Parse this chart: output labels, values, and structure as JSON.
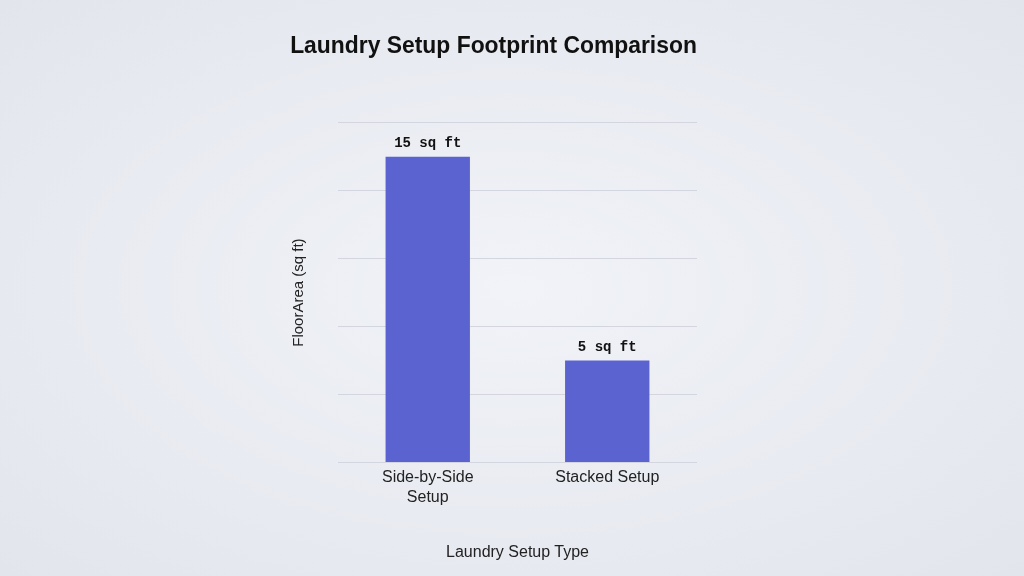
{
  "chart_data": {
    "type": "bar",
    "title": "Laundry Setup Footprint Comparison",
    "xlabel": "Laundry Setup Type",
    "ylabel": "FloorArea (sq ft)",
    "categories": [
      "Side-by-Side Setup",
      "Stacked Setup"
    ],
    "values": [
      15,
      5
    ],
    "value_labels": [
      "15 sq ft",
      "5 sq ft"
    ],
    "color": "#5a63d0",
    "ylim": [
      0,
      16.67
    ],
    "yticks": [
      {
        "value": 0,
        "label": null
      },
      {
        "value": 3.33,
        "label": null
      },
      {
        "value": 6.67,
        "label": null
      },
      {
        "value": 10,
        "label": null
      },
      {
        "value": 13.33,
        "label": null
      },
      {
        "value": 16.67,
        "label": null
      }
    ],
    "grid": "y",
    "tick_labels": "x"
  }
}
